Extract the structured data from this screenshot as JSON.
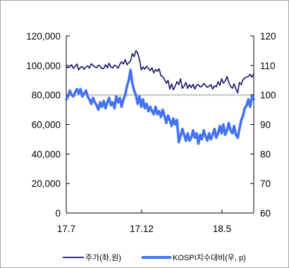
{
  "chart_data": {
    "type": "line",
    "title": "",
    "x_ticks": [
      "17.7",
      "17.12",
      "18.5"
    ],
    "y_left": {
      "ticks": [
        "120,000",
        "100,000",
        "80,000",
        "60,000",
        "40,000",
        "20,000",
        "0"
      ],
      "range": [
        0,
        120000
      ]
    },
    "y_right": {
      "ticks": [
        "120",
        "110",
        "100",
        "90",
        "80",
        "70",
        "60"
      ],
      "range": [
        60,
        120
      ]
    },
    "reference_line": {
      "axis": "right",
      "value": 100
    },
    "legend_position": "bottom",
    "series": [
      {
        "name": "주가(좌,원)",
        "axis": "left",
        "color": "#14146e",
        "values": [
          99500,
          98500,
          99000,
          100500,
          98000,
          99500,
          101000,
          97000,
          98800,
          99200,
          97500,
          99000,
          99800,
          98200,
          101200,
          100000,
          99000,
          98500,
          100200,
          99500,
          97800,
          98000,
          100500,
          98400,
          101500,
          99000,
          98300,
          100200,
          99700,
          98100,
          100800,
          102500,
          101000,
          104000,
          100500,
          102000,
          103000,
          108000,
          106000,
          110000,
          108500,
          104000,
          97000,
          99000,
          97500,
          99500,
          98000,
          96500,
          98500,
          95000,
          97200,
          96000,
          97800,
          93000,
          92500,
          90500,
          88000,
          90000,
          84000,
          87500,
          83500,
          86000,
          89000,
          87000,
          91000,
          84500,
          86000,
          88500,
          84500,
          87000,
          85000,
          87200,
          84000,
          86500,
          87000,
          85500,
          85800,
          87800,
          86500,
          85200,
          86000,
          87000,
          84000,
          86200,
          85500,
          89000,
          86500,
          91000,
          88000,
          89500,
          92500,
          88500,
          86000,
          84500,
          87500,
          84000,
          81500,
          88500,
          87000,
          90500,
          91500,
          92200,
          92500,
          94000,
          92000,
          94500
        ]
      },
      {
        "name": "KOSPI지수대비(우, p)",
        "axis": "right",
        "color": "#4472f0",
        "values": [
          98.5,
          99.5,
          101.5,
          100,
          99.5,
          101,
          102,
          100.5,
          102,
          99.5,
          100.5,
          101.5,
          99.5,
          98.5,
          97,
          99,
          97.5,
          96.5,
          95,
          97.5,
          96,
          98,
          95.5,
          97.5,
          99,
          96.5,
          97.5,
          95.5,
          99.5,
          97.5,
          99,
          96,
          98.5,
          100,
          103,
          105,
          108.5,
          104,
          101.5,
          100,
          97,
          99.5,
          96,
          98.5,
          95.5,
          97,
          94.5,
          96,
          94.5,
          93.5,
          96,
          93.5,
          94.5,
          92.5,
          95,
          93,
          90.5,
          93,
          91.5,
          89.5,
          92,
          90,
          91.5,
          84,
          86,
          88.5,
          86.5,
          84.5,
          87,
          84.5,
          85.5,
          88,
          85.5,
          87,
          83.5,
          86.5,
          85,
          88,
          86,
          84.5,
          87,
          85,
          86.5,
          88.5,
          85.5,
          87,
          89.5,
          87,
          90,
          86.5,
          88,
          90.5,
          88,
          87,
          89.5,
          86.5,
          85.5,
          88.5,
          91.5,
          93,
          95.5,
          96.5,
          98.5,
          96,
          99.5,
          98.5
        ]
      }
    ]
  }
}
